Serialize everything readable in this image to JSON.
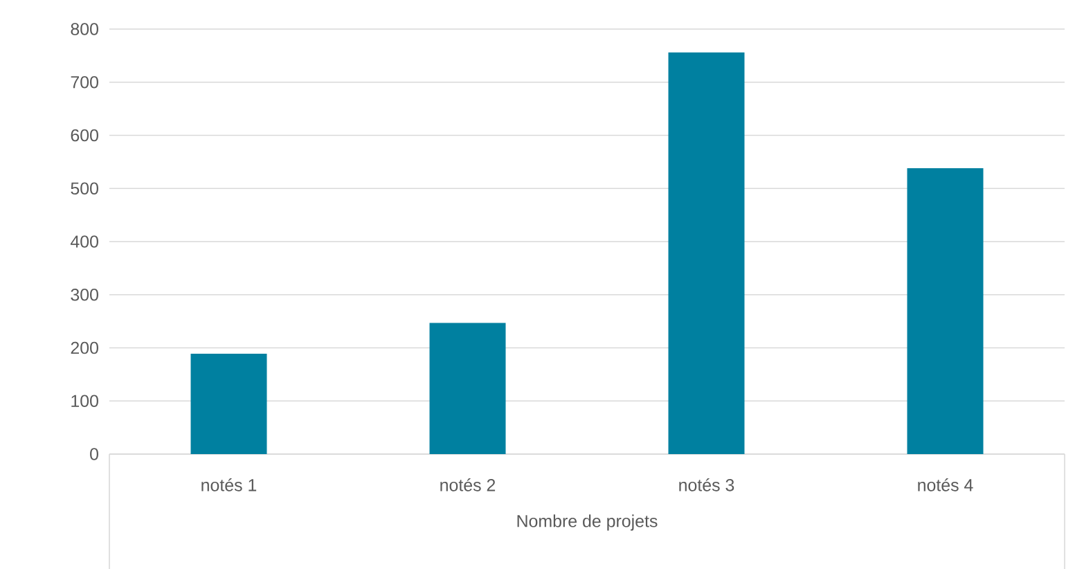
{
  "chart_data": {
    "type": "bar",
    "xlabel": "Nombre de projets",
    "categories": [
      "notés 1",
      "notés 2",
      "notés 3",
      "notés 4"
    ],
    "values": [
      189,
      247,
      756,
      538
    ],
    "color": "#0080a0",
    "ylim": [
      0,
      800
    ],
    "yticks": [
      0,
      100,
      200,
      300,
      400,
      500,
      600,
      700,
      800
    ],
    "grid": "y"
  }
}
